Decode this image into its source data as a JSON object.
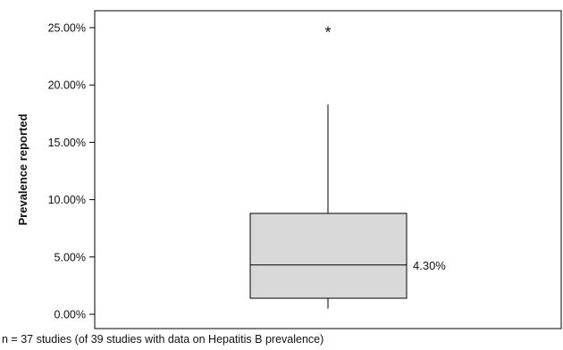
{
  "chart_data": {
    "type": "boxplot",
    "title": "",
    "xlabel": "",
    "ylabel": "Prevalence reported",
    "ylim": [
      0,
      26
    ],
    "y_unit": "%",
    "y_ticks": [
      0,
      5,
      10,
      15,
      20,
      25
    ],
    "y_tick_labels": [
      "0.00%",
      "5.00%",
      "10.00%",
      "15.00%",
      "20.00%",
      "25.00%"
    ],
    "box": {
      "whisker_low": 0.5,
      "q1": 1.4,
      "median": 4.3,
      "q3": 8.8,
      "whisker_high": 18.3,
      "outliers": [
        24.9
      ],
      "median_label": "4.30%",
      "outlier_marker": "*"
    },
    "grid": false,
    "legend": "none",
    "colors": {
      "box_fill": "#d9d9d9",
      "line": "#000000"
    }
  },
  "footnote": "n = 37 studies (of 39 studies with data on Hepatitis B prevalence)"
}
